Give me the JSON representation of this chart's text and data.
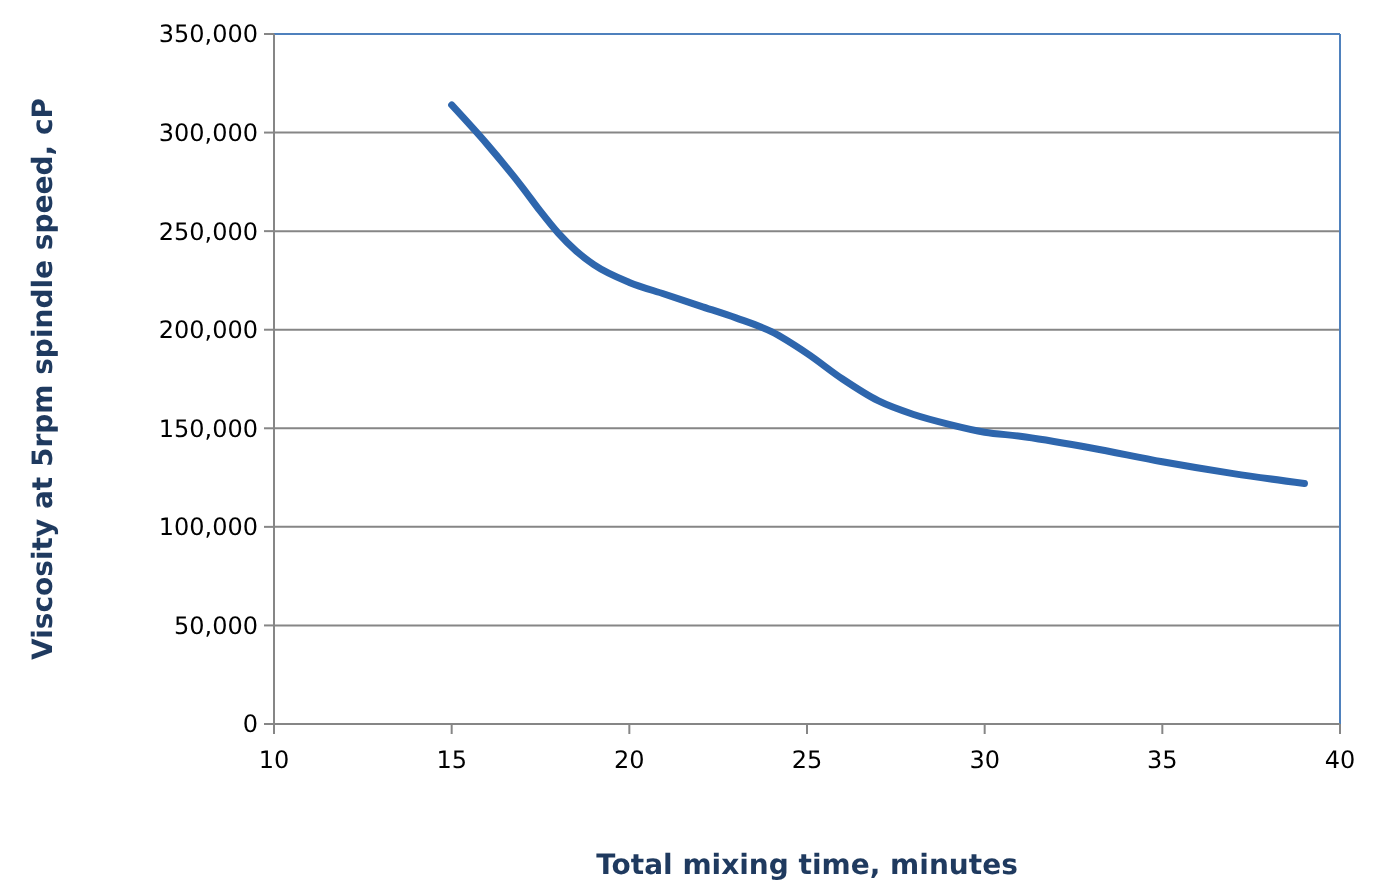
{
  "chart_data": {
    "type": "line",
    "xlabel": "Total mixing time, minutes",
    "ylabel": "Viscosity at 5rpm spindle speed, cP",
    "x": [
      15,
      16,
      17,
      17.5,
      18,
      18.5,
      19,
      20,
      21,
      22,
      23,
      24,
      25,
      26,
      27,
      28,
      29,
      30,
      31,
      33,
      35,
      37,
      39
    ],
    "series": [
      {
        "color": "#2e66ad",
        "values": [
          314000,
          294000,
          272000,
          260000,
          249000,
          240000,
          233000,
          224000,
          218000,
          212000,
          206000,
          199000,
          188000,
          175000,
          164000,
          157000,
          152000,
          148000,
          146000,
          140000,
          133000,
          127000,
          122000
        ]
      }
    ],
    "xlim": [
      10,
      40
    ],
    "xticks": [
      10,
      15,
      20,
      25,
      30,
      35,
      40
    ],
    "ylim": [
      0,
      350000
    ],
    "yticks": [
      {
        "value": 0,
        "label": "0"
      },
      {
        "value": 50000,
        "label": "50,000"
      },
      {
        "value": 100000,
        "label": "100,000"
      },
      {
        "value": 150000,
        "label": "150,000"
      },
      {
        "value": 200000,
        "label": "200,000"
      },
      {
        "value": 250000,
        "label": "250,000"
      },
      {
        "value": 300000,
        "label": "300,000"
      },
      {
        "value": 350000,
        "label": "350,000"
      }
    ],
    "grid": "y",
    "marker": "none",
    "line_style": "solid"
  }
}
